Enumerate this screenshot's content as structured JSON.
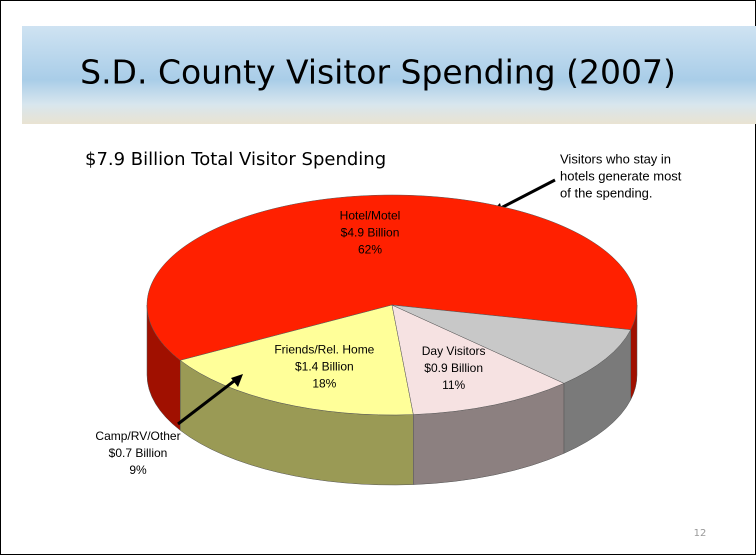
{
  "chart_data": {
    "type": "pie",
    "title": "S.D. County Visitor Spending (2007)",
    "subtitle": "$7.9 Billion Total Visitor Spending",
    "annotation": [
      "Visitors who stay in",
      "hotels generate most",
      "of the spending."
    ],
    "categories": [
      "Hotel/Motel",
      "Friends/Rel. Home",
      "Day Visitors",
      "Camp/RV/Other"
    ],
    "values": [
      62,
      18,
      11,
      9
    ],
    "value_labels": [
      "62%",
      "18%",
      "11%",
      "9%"
    ],
    "amount_labels": [
      "$4.9 Billion",
      "$1.4 Billion",
      "$0.9 Billion",
      "$0.7 Billion"
    ],
    "colors": [
      "#ff2000",
      "#ffff99",
      "#f6e2e2",
      "#c8c8c8"
    ],
    "side_colors": [
      "#a01000",
      "#9a9a55",
      "#8c8080",
      "#7a7a7a"
    ],
    "page_number": "12"
  }
}
